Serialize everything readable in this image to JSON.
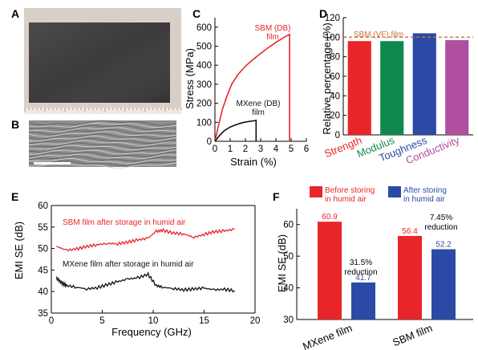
{
  "panels": {
    "A": "A",
    "B": "B",
    "C": "C",
    "D": "D",
    "E": "E",
    "F": "F"
  },
  "colors": {
    "red": "#e8262a",
    "black": "#111111",
    "green": "#0f8a4c",
    "blue": "#2b4aa6",
    "magenta": "#b04ea0",
    "orange": "#c87137",
    "film_dark": "#3d3a3d",
    "sem_gray": "#8e8e8e"
  },
  "chart_data": [
    {
      "id": "C",
      "type": "line",
      "xlabel": "Strain (%)",
      "ylabel": "Stress (MPa)",
      "xlim": [
        0,
        6
      ],
      "ylim": [
        0,
        650
      ],
      "xticks": [
        "0",
        "1",
        "2",
        "3",
        "4",
        "5",
        "6"
      ],
      "yticks": [
        "0",
        "100",
        "200",
        "300",
        "400",
        "500",
        "600"
      ],
      "series": [
        {
          "name": "SBM (DB) film",
          "label_lines": [
            "SBM (DB)",
            "film"
          ],
          "color": "#e8262a",
          "x": [
            0,
            0.25,
            0.5,
            0.8,
            1.1,
            1.5,
            2.0,
            2.5,
            3.0,
            3.5,
            4.0,
            4.5,
            4.9,
            4.9
          ],
          "y": [
            0,
            90,
            170,
            240,
            300,
            350,
            395,
            430,
            462,
            492,
            520,
            545,
            562,
            0
          ]
        },
        {
          "name": "MXene (DB) film",
          "label_lines": [
            "MXene (DB)",
            "film"
          ],
          "color": "#111111",
          "x": [
            0,
            0.3,
            0.6,
            1.0,
            1.4,
            1.8,
            2.2,
            2.6,
            2.7,
            2.7
          ],
          "y": [
            0,
            30,
            55,
            75,
            88,
            98,
            104,
            108,
            110,
            0
          ]
        }
      ],
      "grid": false
    },
    {
      "id": "D",
      "type": "bar",
      "ylabel": "Relative percentage (%)",
      "ylim": [
        0,
        120
      ],
      "yticks": [
        "0",
        "20",
        "40",
        "60",
        "80",
        "100",
        "120"
      ],
      "categories": [
        "Strength",
        "Modulus",
        "Toughness",
        "Conductivity"
      ],
      "values": [
        96,
        96,
        104,
        97
      ],
      "bar_colors": [
        "#e8262a",
        "#0f8a4c",
        "#2b4aa6",
        "#b04ea0"
      ],
      "reference_line": {
        "value": 100,
        "label": "SBM (VF) film",
        "color": "#c87137"
      },
      "grid": false
    },
    {
      "id": "E",
      "type": "line",
      "xlabel": "Frequency (GHz)",
      "ylabel": "EMI SE (dB)",
      "xlim": [
        0,
        20
      ],
      "ylim": [
        35,
        60
      ],
      "xticks": [
        "0",
        "5",
        "10",
        "15",
        "20"
      ],
      "yticks": [
        "35",
        "40",
        "45",
        "50",
        "55",
        "60"
      ],
      "series": [
        {
          "name": "SBM film after storage in humid air",
          "color": "#e8262a",
          "x": [
            0.5,
            1.5,
            2.5,
            3.5,
            4.5,
            5.5,
            6.5,
            7.5,
            8.5,
            9.5,
            10.3,
            11,
            12,
            13,
            14,
            15,
            16,
            17,
            18
          ],
          "y": [
            50.5,
            49.6,
            49.9,
            50.5,
            50.9,
            51.2,
            51.1,
            51.5,
            52.0,
            52.4,
            54.0,
            54.2,
            53.6,
            53.4,
            52.6,
            53.3,
            53.9,
            54.1,
            54.5
          ]
        },
        {
          "name": "MXene film after storage in humid air",
          "color": "#111111",
          "x": [
            0.5,
            1.0,
            1.5,
            2.5,
            3.5,
            4.5,
            5.5,
            6.5,
            7.5,
            8.5,
            9.5,
            10.3,
            11,
            12,
            13,
            14,
            15,
            16,
            17,
            18
          ],
          "y": [
            43.2,
            42.0,
            41.4,
            41.0,
            40.6,
            40.9,
            41.6,
            42.3,
            42.9,
            43.2,
            44.0,
            41.4,
            41.0,
            40.7,
            40.4,
            40.6,
            40.8,
            40.4,
            40.5,
            40.2
          ]
        }
      ],
      "grid": false
    },
    {
      "id": "F",
      "type": "bar",
      "ylabel": "EMI SE (dB)",
      "ylim": [
        30,
        65
      ],
      "yticks": [
        "30",
        "40",
        "50",
        "60"
      ],
      "categories": [
        "MXene film",
        "SBM film"
      ],
      "series": [
        {
          "name": "Before storing in humid air",
          "label_lines": [
            "Before storing",
            "in humid air"
          ],
          "color": "#e8262a",
          "values": [
            60.9,
            56.4
          ]
        },
        {
          "name": "After storing in humid air",
          "label_lines": [
            "After storing",
            "in humid air"
          ],
          "color": "#2b4aa6",
          "values": [
            41.7,
            52.2
          ]
        }
      ],
      "value_labels": {
        "before": [
          "60.9",
          "56.4"
        ],
        "after": [
          "41.7",
          "52.2"
        ]
      },
      "annotations": [
        {
          "lines": [
            "31.5%",
            "reduction"
          ]
        },
        {
          "lines": [
            "7.45%",
            "reduction"
          ]
        }
      ],
      "grid": false
    }
  ]
}
